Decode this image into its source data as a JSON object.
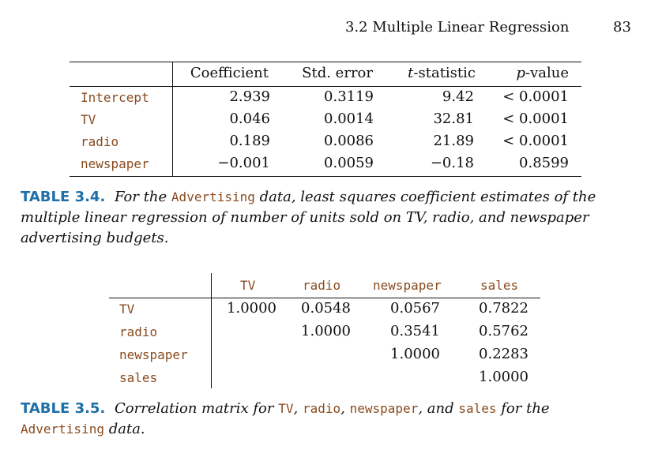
{
  "running_header": {
    "section_title": "3.2 Multiple Linear Regression",
    "page_number": "83"
  },
  "table_3_4": {
    "columns": [
      "Coefficient",
      "Std. error",
      "t-statistic",
      "p-value"
    ],
    "rows": [
      {
        "label": "Intercept",
        "coefficient": "2.939",
        "std_error": "0.3119",
        "t_statistic": "9.42",
        "p_value": "< 0.0001"
      },
      {
        "label": "TV",
        "coefficient": "0.046",
        "std_error": "0.0014",
        "t_statistic": "32.81",
        "p_value": "< 0.0001"
      },
      {
        "label": "radio",
        "coefficient": "0.189",
        "std_error": "0.0086",
        "t_statistic": "21.89",
        "p_value": "< 0.0001"
      },
      {
        "label": "newspaper",
        "coefficient": "−0.001",
        "std_error": "0.0059",
        "t_statistic": "−0.18",
        "p_value": "0.8599"
      }
    ]
  },
  "caption_3_4": {
    "number": "TABLE 3.4.",
    "text_1": "For the",
    "code_1": "Advertising",
    "text_2": "data, least squares coefficient estimates of the",
    "line_2": "multiple linear regression of number of units sold on TV, radio, and newspaper",
    "line_3": "advertising budgets."
  },
  "table_3_5": {
    "columns": [
      "TV",
      "radio",
      "newspaper",
      "sales"
    ],
    "rows": [
      {
        "label": "TV",
        "values": [
          "1.0000",
          "0.0548",
          "0.0567",
          "0.7822"
        ]
      },
      {
        "label": "radio",
        "values": [
          "",
          "1.0000",
          "0.3541",
          "0.5762"
        ]
      },
      {
        "label": "newspaper",
        "values": [
          "",
          "",
          "1.0000",
          "0.2283"
        ]
      },
      {
        "label": "sales",
        "values": [
          "",
          "",
          "",
          "1.0000"
        ]
      }
    ]
  },
  "caption_3_5": {
    "number": "TABLE 3.5.",
    "text_1": "Correlation matrix for",
    "code_tv": "TV",
    "sep_1": ",",
    "code_radio": "radio",
    "sep_2": ",",
    "code_newspaper": "newspaper",
    "text_2": ", and",
    "code_sales": "sales",
    "text_3": "for the",
    "code_advertising": "Advertising",
    "text_4": "data."
  }
}
